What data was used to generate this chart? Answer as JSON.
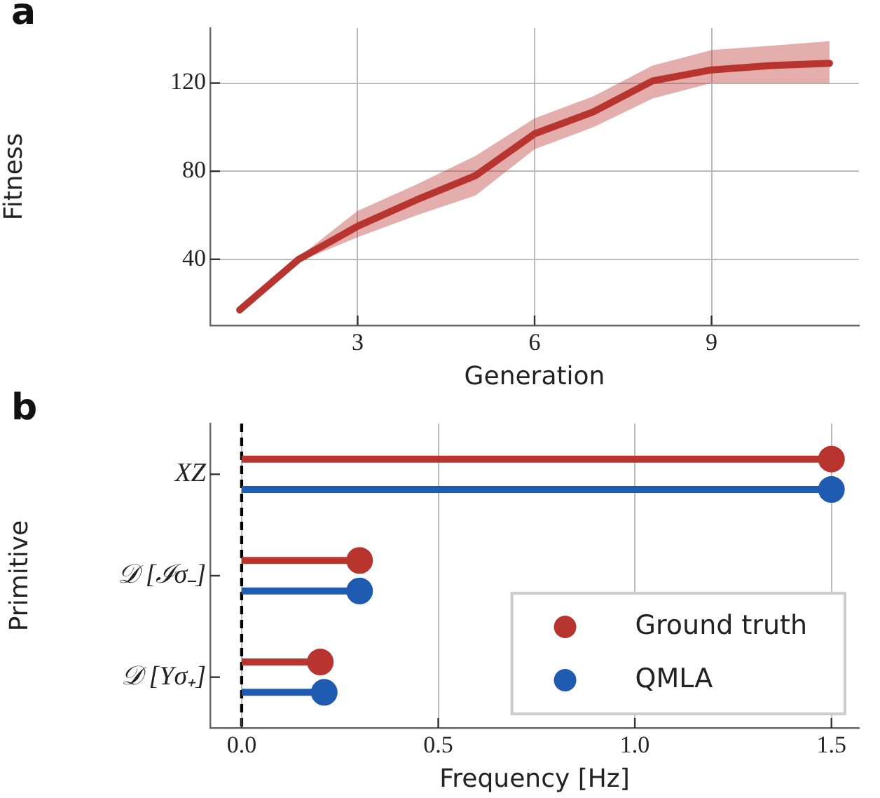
{
  "chart_data": [
    {
      "type": "line",
      "title": "a",
      "xlabel": "Generation",
      "ylabel": "Fitness",
      "x": [
        1,
        2,
        3,
        4,
        5,
        6,
        7,
        8,
        9,
        10,
        11
      ],
      "series": [
        {
          "color": "#b8342f",
          "values": [
            17,
            40,
            55,
            67,
            78,
            97,
            107,
            121,
            126,
            128,
            129
          ],
          "lower": [
            17,
            39,
            50,
            60,
            69,
            90,
            100,
            113,
            120,
            120,
            120
          ],
          "upper": [
            17,
            41,
            62,
            74,
            87,
            104,
            114,
            128,
            135,
            137,
            139
          ]
        }
      ],
      "xlim": [
        0.5,
        11.5
      ],
      "xticks": [
        3,
        6,
        9
      ],
      "ylim": [
        10,
        145
      ],
      "yticks": [
        40,
        80,
        120
      ],
      "grid": true,
      "line_style": "solid",
      "marker": "none"
    },
    {
      "type": "lollipop",
      "title": "b",
      "orientation": "horizontal",
      "xlabel": "Frequency [Hz]",
      "ylabel": "Primitive",
      "categories": [
        "XZ",
        "𝒟 [ℐσ₋]",
        "𝒟 [Yσ₊]"
      ],
      "series": [
        {
          "name": "Ground truth",
          "color": "#b8342f",
          "values": [
            1.5,
            0.3,
            0.2
          ]
        },
        {
          "name": "QMLA",
          "color": "#1f5bb0",
          "values": [
            1.5,
            0.3,
            0.21
          ]
        }
      ],
      "xlim": [
        -0.08,
        1.57
      ],
      "xticks": [
        {
          "value": 0,
          "label": "0.0"
        },
        0.5,
        {
          "value": 1,
          "label": "1.0"
        },
        1.5
      ],
      "grid": "x",
      "legend": "bottom right",
      "marker": "circle",
      "ref_lines": [
        {
          "axis": "x",
          "value": 0,
          "color": "#000000",
          "line_style": "dashed"
        }
      ]
    }
  ]
}
